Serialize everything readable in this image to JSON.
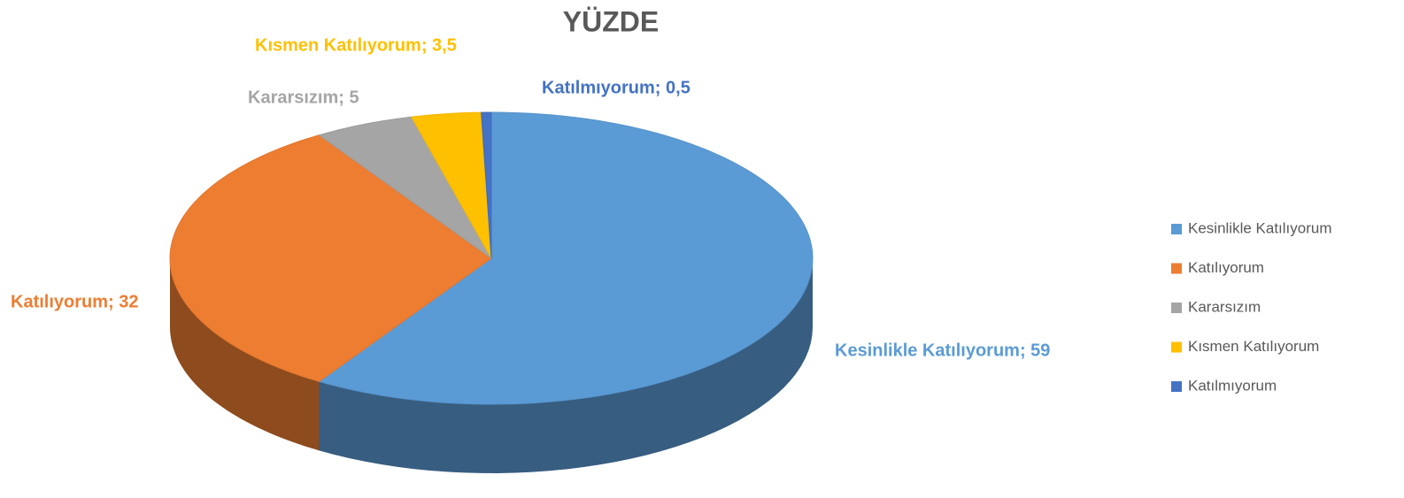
{
  "chart_data": {
    "type": "pie",
    "title": "YÜZDE",
    "categories": [
      "Kesinlikle Katılıyorum",
      "Katılıyorum",
      "Kararsızım",
      "Kısmen Katılıyorum",
      "Katılmıyorum"
    ],
    "values": [
      59,
      32,
      5,
      3.5,
      0.5
    ],
    "value_labels": [
      "Kesinlikle Katılıyorum; 59",
      "Katılıyorum; 32",
      "Kararsızım; 5",
      "Kısmen Katılıyorum; 3,5",
      "Katılmıyorum; 0,5"
    ],
    "colors": [
      "#5b9bd5",
      "#ed7d31",
      "#a5a5a5",
      "#ffc000",
      "#4472c4"
    ],
    "legend": "right"
  }
}
